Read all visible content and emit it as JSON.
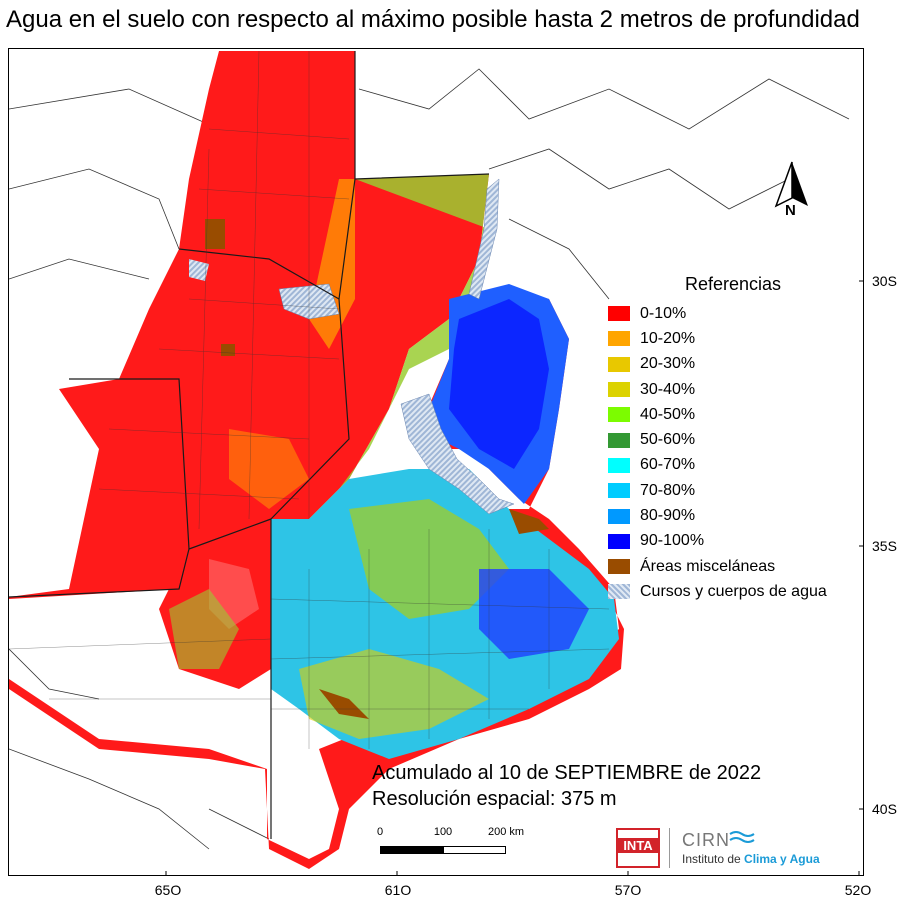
{
  "map": {
    "title": "Agua en el suelo con respecto al máximo posible hasta 2 metros de profundidad",
    "x_ticks": [
      "65O",
      "61O",
      "57O",
      "52O"
    ],
    "y_ticks": [
      "30S",
      "35S",
      "40S"
    ],
    "north_label": "N",
    "legend": {
      "title": "Referencias",
      "items": [
        {
          "label": "0-10%",
          "color": "#ff0000"
        },
        {
          "label": "10-20%",
          "color": "#ffa500"
        },
        {
          "label": "20-30%",
          "color": "#e8c800"
        },
        {
          "label": "30-40%",
          "color": "#dcd200"
        },
        {
          "label": "40-50%",
          "color": "#7cfc00"
        },
        {
          "label": "50-60%",
          "color": "#339933"
        },
        {
          "label": "60-70%",
          "color": "#00ffff"
        },
        {
          "label": "70-80%",
          "color": "#00ccff"
        },
        {
          "label": "80-90%",
          "color": "#0099ff"
        },
        {
          "label": "90-100%",
          "color": "#0000ff"
        },
        {
          "label": "Áreas misceláneas",
          "color": "#994c00"
        },
        {
          "label": "Cursos y cuerpos de agua",
          "color": "#b8cde6"
        }
      ]
    },
    "note_line1": "Acumulado al 10 de SEPTIEMBRE de 2022",
    "note_line2": "Resolución espacial: 375 m",
    "scale": {
      "labels": [
        "0",
        "100",
        "200 km"
      ]
    },
    "logos": {
      "inta": "INTA",
      "cirn": "CIRN",
      "cirn_sub_prefix": "Instituto de ",
      "cirn_sub_emph": "Clima y Agua"
    }
  }
}
